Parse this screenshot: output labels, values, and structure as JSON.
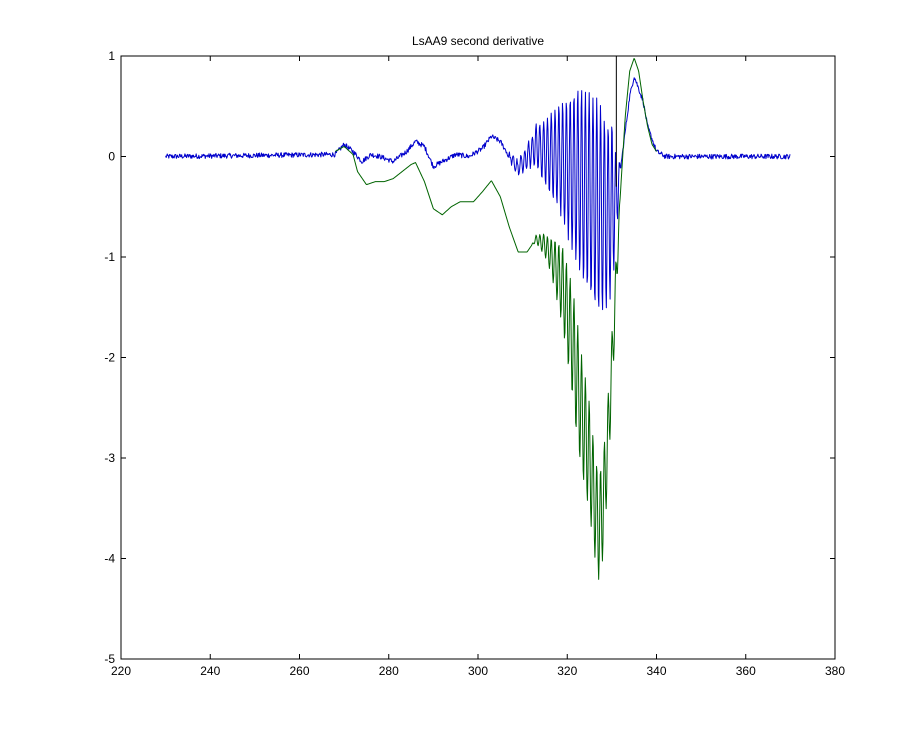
{
  "chart_data": {
    "type": "line",
    "title": "LsAA9 second derivative",
    "xlabel": "",
    "ylabel": "",
    "xlim": [
      220,
      380
    ],
    "ylim": [
      -5,
      1
    ],
    "xticks": [
      220,
      240,
      260,
      280,
      300,
      320,
      340,
      360,
      380
    ],
    "yticks": [
      -5,
      -4,
      -3,
      -2,
      -1,
      0,
      1
    ],
    "grid": false,
    "legend": "none",
    "vertical_line_x": 331,
    "series": [
      {
        "color": "#0000cc",
        "x_range": [
          230,
          370
        ],
        "anchors": [
          [
            230,
            0.0
          ],
          [
            268,
            0.02
          ],
          [
            270,
            0.12
          ],
          [
            272,
            0.05
          ],
          [
            274,
            -0.05
          ],
          [
            276,
            0.02
          ],
          [
            278,
            0.0
          ],
          [
            281,
            -0.05
          ],
          [
            284,
            0.05
          ],
          [
            286,
            0.15
          ],
          [
            288,
            0.1
          ],
          [
            290,
            -0.1
          ],
          [
            292,
            -0.05
          ],
          [
            295,
            0.02
          ],
          [
            298,
            0.0
          ],
          [
            301,
            0.08
          ],
          [
            303,
            0.2
          ],
          [
            305,
            0.15
          ],
          [
            307,
            0.0
          ],
          [
            309,
            -0.12
          ],
          [
            311,
            0.0
          ],
          [
            313,
            0.1
          ],
          [
            315,
            0.05
          ],
          [
            318,
            0.0
          ],
          [
            320,
            -0.1
          ],
          [
            324,
            -0.3
          ],
          [
            327,
            -0.5
          ],
          [
            329,
            -0.6
          ],
          [
            331,
            -0.4
          ],
          [
            332,
            -0.1
          ],
          [
            333,
            0.25
          ],
          [
            334,
            0.6
          ],
          [
            335,
            0.8
          ],
          [
            337,
            0.55
          ],
          [
            338,
            0.3
          ],
          [
            340,
            0.05
          ],
          [
            342,
            0.0
          ],
          [
            370,
            0.0
          ]
        ],
        "oscillation": [
          [
            306,
            0.0
          ],
          [
            312,
            0.15
          ],
          [
            318,
            0.5
          ],
          [
            323,
            0.95
          ],
          [
            327,
            1.05
          ],
          [
            330,
            0.85
          ],
          [
            331,
            0.4
          ],
          [
            332,
            0.0
          ]
        ],
        "period": 0.85,
        "noise": 0.025
      },
      {
        "color": "#006400",
        "x_range": [
          268,
          340
        ],
        "anchors": [
          [
            268,
            0.05
          ],
          [
            270,
            0.1
          ],
          [
            272,
            0.02
          ],
          [
            273,
            -0.15
          ],
          [
            275,
            -0.28
          ],
          [
            277,
            -0.25
          ],
          [
            279,
            -0.25
          ],
          [
            281,
            -0.22
          ],
          [
            283,
            -0.15
          ],
          [
            285,
            -0.08
          ],
          [
            286,
            -0.06
          ],
          [
            288,
            -0.25
          ],
          [
            290,
            -0.52
          ],
          [
            292,
            -0.58
          ],
          [
            294,
            -0.5
          ],
          [
            296,
            -0.45
          ],
          [
            299,
            -0.45
          ],
          [
            301,
            -0.35
          ],
          [
            303,
            -0.24
          ],
          [
            305,
            -0.4
          ],
          [
            307,
            -0.7
          ],
          [
            309,
            -0.95
          ],
          [
            311,
            -0.95
          ],
          [
            313,
            -0.82
          ],
          [
            315,
            -0.88
          ],
          [
            317,
            -1.05
          ],
          [
            319,
            -1.3
          ],
          [
            321,
            -1.8
          ],
          [
            323,
            -2.5
          ],
          [
            325,
            -3.0
          ],
          [
            326,
            -3.4
          ],
          [
            327,
            -3.7
          ],
          [
            328,
            -3.5
          ],
          [
            329,
            -2.9
          ],
          [
            330,
            -2.1
          ],
          [
            331,
            -1.2
          ],
          [
            332,
            -0.3
          ],
          [
            333,
            0.4
          ],
          [
            334,
            0.85
          ],
          [
            335,
            0.98
          ],
          [
            336,
            0.85
          ],
          [
            337,
            0.55
          ],
          [
            338,
            0.3
          ],
          [
            339,
            0.12
          ],
          [
            340,
            0.05
          ]
        ],
        "oscillation": [
          [
            312,
            0.0
          ],
          [
            316,
            0.15
          ],
          [
            319,
            0.4
          ],
          [
            322,
            0.6
          ],
          [
            325,
            0.55
          ],
          [
            328,
            0.5
          ],
          [
            331,
            0.25
          ],
          [
            332,
            0.0
          ]
        ],
        "period": 0.85,
        "noise": 0.0
      }
    ]
  }
}
